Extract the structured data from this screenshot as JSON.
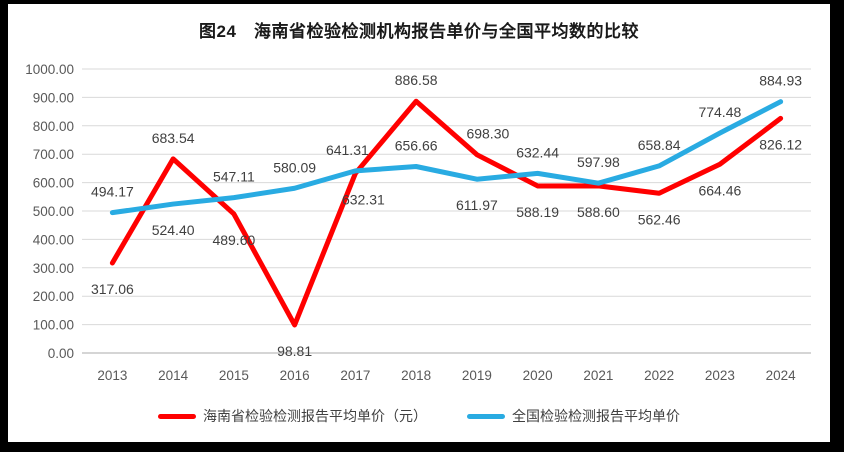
{
  "frame": {
    "border_color": "#000000",
    "chart_background": "#ffffff"
  },
  "chart_data": {
    "type": "line",
    "title": "图24　海南省检验检测机构报告单价与全国平均数的比较",
    "categories": [
      "2013",
      "2014",
      "2015",
      "2016",
      "2017",
      "2018",
      "2019",
      "2020",
      "2021",
      "2022",
      "2023",
      "2024"
    ],
    "series": [
      {
        "name": "海南省检验检测报告平均单价（元）",
        "color": "#FF0000",
        "values": [
          317.06,
          683.54,
          489.6,
          98.81,
          632.31,
          886.58,
          698.3,
          588.19,
          588.6,
          562.46,
          664.46,
          826.12
        ],
        "label_positions": [
          "below",
          "above",
          "below",
          "below",
          "below",
          "above",
          "above",
          "below",
          "below",
          "below",
          "below",
          "below"
        ]
      },
      {
        "name": "全国检验检测报告平均单价",
        "color": "#29ABE2",
        "values": [
          494.17,
          524.4,
          547.11,
          580.09,
          641.31,
          656.66,
          611.97,
          632.44,
          597.98,
          658.84,
          774.48,
          884.93
        ],
        "label_positions": [
          "above",
          "below",
          "above",
          "above",
          "above",
          "above",
          "below",
          "above",
          "above",
          "above",
          "above",
          "above"
        ]
      }
    ],
    "y_axis": {
      "min": 0,
      "max": 1000,
      "step": 100,
      "tick_labels": [
        "0.00",
        "100.00",
        "200.00",
        "300.00",
        "400.00",
        "500.00",
        "600.00",
        "700.00",
        "800.00",
        "900.00",
        "1000.00"
      ]
    },
    "grid": true,
    "grid_color": "#D9D9D9",
    "axis_line_color": "#ABABAB",
    "value_decimals": 2,
    "data_label_color": "#404040",
    "tick_label_color": "#595959",
    "legend_position": "bottom"
  }
}
